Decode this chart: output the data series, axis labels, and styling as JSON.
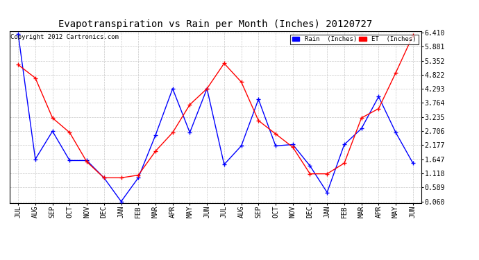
{
  "title": "Evapotranspiration vs Rain per Month (Inches) 20120727",
  "copyright": "Copyright 2012 Cartronics.com",
  "months": [
    "JUL",
    "AUG",
    "SEP",
    "OCT",
    "NOV",
    "DEC",
    "JAN",
    "FEB",
    "MAR",
    "APR",
    "MAY",
    "JUN",
    "JUL",
    "AUG",
    "SEP",
    "OCT",
    "NOV",
    "DEC",
    "JAN",
    "FEB",
    "MAR",
    "APR",
    "MAY",
    "JUN"
  ],
  "rain_inches": [
    6.35,
    1.65,
    2.7,
    1.6,
    1.6,
    0.95,
    0.06,
    0.95,
    2.55,
    4.3,
    2.65,
    4.3,
    1.45,
    2.15,
    3.9,
    2.15,
    2.2,
    1.4,
    0.4,
    2.2,
    2.8,
    4.0,
    2.65,
    1.5
  ],
  "et_inches": [
    5.2,
    4.7,
    3.2,
    2.65,
    1.55,
    0.95,
    0.95,
    1.05,
    1.95,
    2.65,
    3.7,
    4.3,
    5.25,
    4.55,
    3.1,
    2.6,
    2.1,
    1.1,
    1.1,
    1.5,
    3.2,
    3.55,
    4.9,
    6.3
  ],
  "yticks": [
    0.06,
    0.589,
    1.118,
    1.647,
    2.177,
    2.706,
    3.235,
    3.764,
    4.293,
    4.822,
    5.352,
    5.881,
    6.41
  ],
  "ylim": [
    0.06,
    6.41
  ],
  "rain_color": "#0000ff",
  "et_color": "#ff0000",
  "background_color": "#ffffff",
  "grid_color": "#c8c8c8",
  "title_fontsize": 10,
  "tick_fontsize": 7,
  "copyright_fontsize": 6.5,
  "legend_rain_label": "Rain  (Inches)",
  "legend_et_label": "ET  (Inches)",
  "fig_width": 6.9,
  "fig_height": 3.75,
  "dpi": 100
}
